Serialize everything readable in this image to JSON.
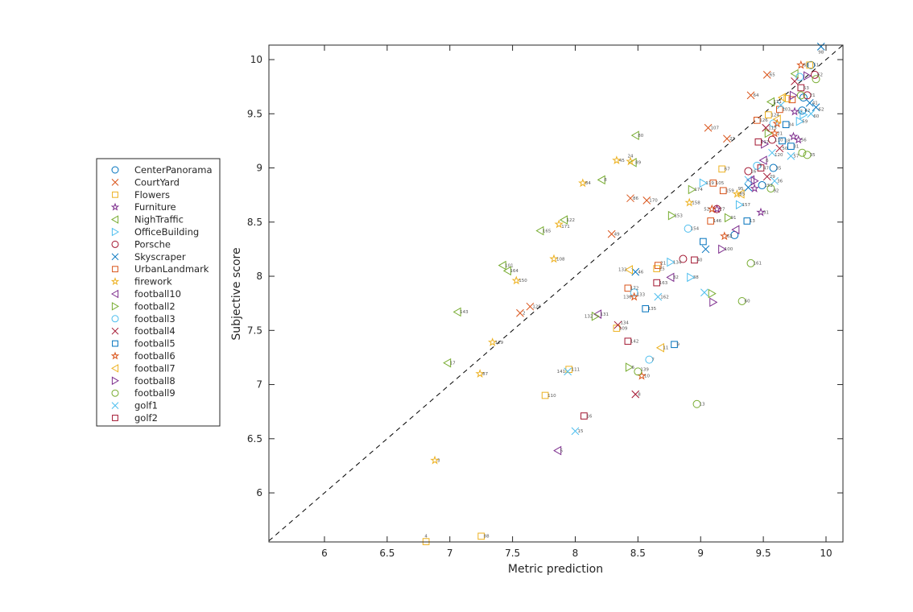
{
  "chart_data": {
    "type": "scatter",
    "xlabel": "Metric prediction",
    "ylabel": "Subjective score",
    "xlim": [
      5.557,
      10.135
    ],
    "ylim": [
      5.547,
      10.134
    ],
    "xticks": [
      "6",
      "6.5",
      "7",
      "7.5",
      "8",
      "8.5",
      "9",
      "9.5",
      "10"
    ],
    "yticks": [
      "6",
      "6.5",
      "7",
      "7.5",
      "8",
      "8.5",
      "9",
      "9.5",
      "10"
    ],
    "grid": false,
    "legend_placement": "outside-left",
    "reference_line": "y = x (dashed)",
    "series": [
      {
        "name": "CenterPanorama",
        "marker": "circle",
        "color": "#0072BD",
        "points": [
          [
            9.88,
            9.95,
            "51"
          ],
          [
            9.82,
            9.65,
            ""
          ],
          [
            9.81,
            9.53,
            "42"
          ],
          [
            9.58,
            9.0,
            "35"
          ],
          [
            9.49,
            8.84,
            "152"
          ],
          [
            9.27,
            8.38,
            ""
          ]
        ]
      },
      {
        "name": "CourtYard",
        "marker": "x",
        "color": "#D95319",
        "points": [
          [
            9.53,
            9.86,
            "65"
          ],
          [
            9.4,
            9.67,
            "64"
          ],
          [
            9.06,
            9.37,
            "107"
          ],
          [
            9.21,
            9.27,
            "23"
          ],
          [
            8.44,
            8.72,
            "86"
          ],
          [
            8.57,
            8.7,
            "170"
          ],
          [
            8.29,
            8.39,
            "49"
          ],
          [
            7.56,
            7.66,
            "2"
          ],
          [
            7.64,
            7.72,
            "128"
          ]
        ]
      },
      {
        "name": "Flowers",
        "marker": "square",
        "color": "#EDB120",
        "points": [
          [
            9.87,
            9.95,
            ""
          ],
          [
            9.69,
            9.64,
            ""
          ],
          [
            9.54,
            9.49,
            "124"
          ],
          [
            9.17,
            8.99,
            "67"
          ],
          [
            8.33,
            7.52,
            "109"
          ],
          [
            7.95,
            7.14,
            "111"
          ],
          [
            7.76,
            6.9,
            "110"
          ],
          [
            6.81,
            5.55,
            "4"
          ],
          [
            7.25,
            5.6,
            "88"
          ],
          [
            8.65,
            8.07,
            "25"
          ]
        ]
      },
      {
        "name": "Furniture",
        "marker": "star",
        "color": "#7E2F8E",
        "points": [
          [
            9.48,
            8.59,
            "31"
          ],
          [
            9.75,
            9.52,
            "17"
          ],
          [
            9.74,
            9.29,
            ""
          ],
          [
            9.78,
            9.26,
            "56"
          ],
          [
            9.43,
            8.81,
            ""
          ],
          [
            9.13,
            8.62,
            "27"
          ]
        ]
      },
      {
        "name": "NighTraffic",
        "marker": "tri-left",
        "color": "#77AC30",
        "points": [
          [
            8.48,
            9.3,
            "80"
          ],
          [
            8.46,
            9.05,
            "89"
          ],
          [
            8.21,
            8.89,
            "8"
          ],
          [
            7.91,
            8.52,
            "122"
          ],
          [
            7.72,
            8.42,
            "165"
          ],
          [
            7.42,
            8.1,
            "101"
          ],
          [
            7.46,
            8.05,
            "164"
          ],
          [
            7.06,
            7.67,
            "143"
          ],
          [
            6.98,
            7.2,
            "17"
          ],
          [
            9.56,
            9.61,
            "111"
          ],
          [
            9.75,
            9.87,
            ""
          ]
        ]
      },
      {
        "name": "OfficeBuilding",
        "marker": "tri-right",
        "color": "#4DBEEE",
        "points": [
          [
            9.82,
            9.49,
            ""
          ],
          [
            9.79,
            9.43,
            "59"
          ],
          [
            9.02,
            8.86,
            "119"
          ],
          [
            9.31,
            8.66,
            "157"
          ],
          [
            8.76,
            8.13,
            "134"
          ],
          [
            8.92,
            7.99,
            "38"
          ]
        ]
      },
      {
        "name": "Porsche",
        "marker": "circle",
        "color": "#A2142F",
        "points": [
          [
            9.91,
            9.86,
            "62"
          ],
          [
            9.85,
            9.67,
            "21"
          ],
          [
            9.57,
            9.26,
            "110"
          ],
          [
            9.38,
            8.97,
            "16"
          ],
          [
            9.13,
            8.62,
            ""
          ],
          [
            8.86,
            8.16,
            ""
          ]
        ]
      },
      {
        "name": "Skyscraper",
        "marker": "x",
        "color": "#0072BD",
        "points": [
          [
            9.96,
            10.12,
            "98"
          ],
          [
            9.87,
            9.6,
            "41"
          ],
          [
            9.92,
            9.56,
            "62"
          ],
          [
            8.48,
            8.04,
            "46"
          ],
          [
            9.38,
            8.82,
            ""
          ],
          [
            9.04,
            8.25,
            ""
          ]
        ]
      },
      {
        "name": "UrbanLandmark",
        "marker": "square",
        "color": "#D95319",
        "points": [
          [
            9.73,
            9.63,
            ""
          ],
          [
            9.63,
            9.54,
            "103"
          ],
          [
            9.45,
            9.44,
            "126"
          ],
          [
            9.1,
            8.86,
            "105"
          ],
          [
            9.18,
            8.79,
            "159"
          ],
          [
            9.08,
            8.51,
            "146"
          ],
          [
            8.66,
            8.1,
            "21"
          ],
          [
            8.42,
            7.89,
            "172"
          ]
        ]
      },
      {
        "name": "firework",
        "marker": "star",
        "color": "#EDB120",
        "points": [
          [
            8.33,
            9.07,
            "45"
          ],
          [
            8.44,
            9.06,
            "24"
          ],
          [
            8.06,
            8.86,
            "84"
          ],
          [
            7.87,
            8.48,
            "171"
          ],
          [
            7.83,
            8.16,
            "108"
          ],
          [
            7.53,
            7.96,
            "150"
          ],
          [
            7.34,
            7.39,
            "129"
          ],
          [
            7.24,
            7.1,
            "87"
          ],
          [
            6.88,
            6.3,
            "3"
          ],
          [
            8.91,
            8.68,
            "158"
          ],
          [
            9.29,
            8.76,
            "85"
          ]
        ]
      },
      {
        "name": "football10",
        "marker": "tri-left",
        "color": "#7E2F8E",
        "points": [
          [
            8.18,
            7.65,
            "131"
          ],
          [
            7.86,
            6.39,
            "5"
          ],
          [
            8.76,
            7.99,
            "32"
          ],
          [
            9.5,
            9.07,
            "6"
          ],
          [
            9.4,
            8.89,
            ""
          ],
          [
            9.28,
            8.43,
            ""
          ]
        ]
      },
      {
        "name": "football2",
        "marker": "tri-right",
        "color": "#77AC30",
        "points": [
          [
            8.16,
            7.63,
            "132"
          ],
          [
            8.43,
            7.16,
            "6"
          ],
          [
            8.77,
            8.56,
            "153"
          ],
          [
            8.93,
            8.8,
            "174"
          ],
          [
            9.22,
            8.54,
            "91"
          ],
          [
            9.54,
            9.32,
            ""
          ],
          [
            9.09,
            7.84,
            ""
          ]
        ]
      },
      {
        "name": "football3",
        "marker": "circle",
        "color": "#4DBEEE",
        "points": [
          [
            8.47,
            7.85,
            "133"
          ],
          [
            8.59,
            7.23,
            "7"
          ],
          [
            8.9,
            8.44,
            "154"
          ],
          [
            9.79,
            9.84,
            ""
          ],
          [
            9.58,
            9.41,
            ""
          ],
          [
            9.45,
            9.02,
            "5"
          ]
        ]
      },
      {
        "name": "football4",
        "marker": "x",
        "color": "#A2142F",
        "points": [
          [
            8.34,
            7.55,
            "134"
          ],
          [
            8.48,
            6.91,
            "8"
          ],
          [
            9.75,
            9.8,
            ""
          ],
          [
            9.52,
            9.37,
            "113"
          ],
          [
            9.63,
            9.18,
            "50"
          ],
          [
            9.53,
            8.92,
            "29"
          ]
        ]
      },
      {
        "name": "football5",
        "marker": "square",
        "color": "#0072BD",
        "points": [
          [
            8.56,
            7.7,
            "135"
          ],
          [
            8.79,
            7.37,
            "9"
          ],
          [
            9.68,
            9.4,
            "34"
          ],
          [
            9.65,
            9.25,
            "18"
          ],
          [
            9.72,
            9.2,
            "31"
          ],
          [
            9.37,
            8.51,
            "13"
          ],
          [
            9.02,
            8.32,
            ""
          ]
        ]
      },
      {
        "name": "football6",
        "marker": "star",
        "color": "#D95319",
        "points": [
          [
            8.47,
            7.81,
            "136"
          ],
          [
            8.53,
            7.08,
            "10"
          ],
          [
            9.8,
            9.95,
            "63"
          ],
          [
            9.61,
            9.41,
            ""
          ],
          [
            9.59,
            9.32,
            "21"
          ],
          [
            9.09,
            8.62,
            "52"
          ],
          [
            9.19,
            8.37,
            "62"
          ]
        ]
      },
      {
        "name": "football7",
        "marker": "tri-left",
        "color": "#EDB120",
        "points": [
          [
            8.43,
            8.06,
            "132"
          ],
          [
            8.68,
            7.34,
            "11"
          ],
          [
            9.65,
            9.65,
            ""
          ],
          [
            9.61,
            9.45,
            ""
          ],
          [
            9.32,
            8.76,
            "95"
          ]
        ]
      },
      {
        "name": "football8",
        "marker": "tri-right",
        "color": "#7E2F8E",
        "points": [
          [
            9.85,
            9.85,
            ""
          ],
          [
            9.74,
            9.67,
            ""
          ],
          [
            9.51,
            9.22,
            ""
          ],
          [
            9.1,
            7.76,
            ""
          ],
          [
            9.17,
            8.25,
            "100"
          ],
          [
            9.43,
            8.88,
            ""
          ]
        ]
      },
      {
        "name": "football9",
        "marker": "circle",
        "color": "#77AC30",
        "points": [
          [
            8.5,
            7.12,
            "139"
          ],
          [
            8.97,
            6.82,
            "13"
          ],
          [
            9.92,
            9.82,
            ""
          ],
          [
            9.8,
            9.67,
            ""
          ],
          [
            9.81,
            9.14,
            ""
          ],
          [
            9.85,
            9.12,
            "35"
          ],
          [
            9.56,
            8.81,
            "92"
          ],
          [
            9.4,
            8.12,
            "161"
          ],
          [
            9.33,
            7.77,
            "60"
          ]
        ]
      },
      {
        "name": "golf1",
        "marker": "x",
        "color": "#4DBEEE",
        "points": [
          [
            7.94,
            7.12,
            "141"
          ],
          [
            8.0,
            6.57,
            "15"
          ],
          [
            9.88,
            9.5,
            "60"
          ],
          [
            9.64,
            9.58,
            ""
          ],
          [
            9.57,
            9.14,
            "120"
          ],
          [
            9.72,
            9.11,
            "57"
          ],
          [
            9.59,
            8.88,
            "36"
          ],
          [
            8.66,
            7.81,
            "162"
          ],
          [
            9.03,
            7.85,
            ""
          ],
          [
            9.38,
            8.89,
            ""
          ]
        ]
      },
      {
        "name": "golf2",
        "marker": "square",
        "color": "#A2142F",
        "points": [
          [
            8.07,
            6.71,
            "16"
          ],
          [
            8.42,
            7.4,
            "142"
          ],
          [
            9.8,
            9.74,
            "53"
          ],
          [
            9.46,
            9.24,
            "117"
          ],
          [
            9.48,
            9.0,
            "47"
          ],
          [
            8.65,
            7.94,
            "163"
          ],
          [
            8.95,
            8.15,
            "40"
          ]
        ]
      }
    ]
  }
}
